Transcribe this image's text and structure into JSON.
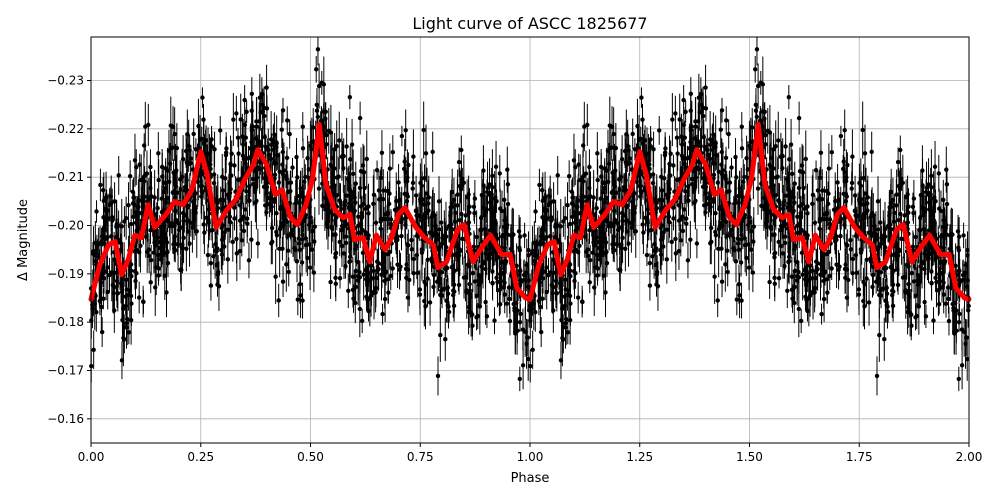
{
  "chart_data": {
    "type": "scatter",
    "title": "Light curve of ASCC 1825677",
    "xlabel": "Phase",
    "ylabel": "Δ Magnitude",
    "xlim": [
      0,
      2
    ],
    "ylim": [
      -0.155,
      -0.239
    ],
    "y_inverted": true,
    "grid": true,
    "xticks": [
      "0.00",
      "0.25",
      "0.50",
      "0.75",
      "1.00",
      "1.25",
      "1.50",
      "1.75",
      "2.00"
    ],
    "xtick_values": [
      0,
      0.25,
      0.5,
      0.75,
      1,
      1.25,
      1.5,
      1.75,
      2
    ],
    "yticks": [
      "−0.23",
      "−0.22",
      "−0.21",
      "−0.20",
      "−0.19",
      "−0.18",
      "−0.17",
      "−0.16"
    ],
    "ytick_values": [
      -0.23,
      -0.22,
      -0.21,
      -0.2,
      -0.19,
      -0.18,
      -0.17,
      -0.16
    ],
    "period_phase": 1,
    "colors": {
      "points": "#000000",
      "model": "#ff0000",
      "grid": "#b0b0b0"
    },
    "series": [
      {
        "style": "line",
        "color": "#ff0000",
        "x": [
          0.0,
          0.02,
          0.04,
          0.055,
          0.07,
          0.085,
          0.1,
          0.115,
          0.13,
          0.145,
          0.17,
          0.19,
          0.21,
          0.23,
          0.25,
          0.265,
          0.285,
          0.31,
          0.33,
          0.35,
          0.37,
          0.38,
          0.4,
          0.42,
          0.435,
          0.455,
          0.47,
          0.49,
          0.505,
          0.52,
          0.535,
          0.555,
          0.575,
          0.59,
          0.6,
          0.62,
          0.635,
          0.65,
          0.67,
          0.685,
          0.7,
          0.715,
          0.74,
          0.76,
          0.78,
          0.79,
          0.81,
          0.835,
          0.85,
          0.87,
          0.89,
          0.91,
          0.935,
          0.955,
          0.97,
          0.99
        ],
        "y": [
          -0.1847,
          -0.1919,
          -0.196,
          -0.1967,
          -0.1898,
          -0.193,
          -0.198,
          -0.1975,
          -0.2043,
          -0.1996,
          -0.2022,
          -0.2049,
          -0.2043,
          -0.2074,
          -0.2153,
          -0.2105,
          -0.1996,
          -0.2033,
          -0.2054,
          -0.2095,
          -0.2126,
          -0.2157,
          -0.2126,
          -0.2064,
          -0.2074,
          -0.2016,
          -0.2002,
          -0.2043,
          -0.2099,
          -0.2209,
          -0.2085,
          -0.2033,
          -0.2016,
          -0.2023,
          -0.1971,
          -0.1975,
          -0.1925,
          -0.198,
          -0.195,
          -0.1975,
          -0.2023,
          -0.2037,
          -0.1996,
          -0.1975,
          -0.196,
          -0.1913,
          -0.1925,
          -0.1992,
          -0.2002,
          -0.1925,
          -0.1954,
          -0.198,
          -0.194,
          -0.194,
          -0.1871,
          -0.185
        ]
      }
    ]
  }
}
